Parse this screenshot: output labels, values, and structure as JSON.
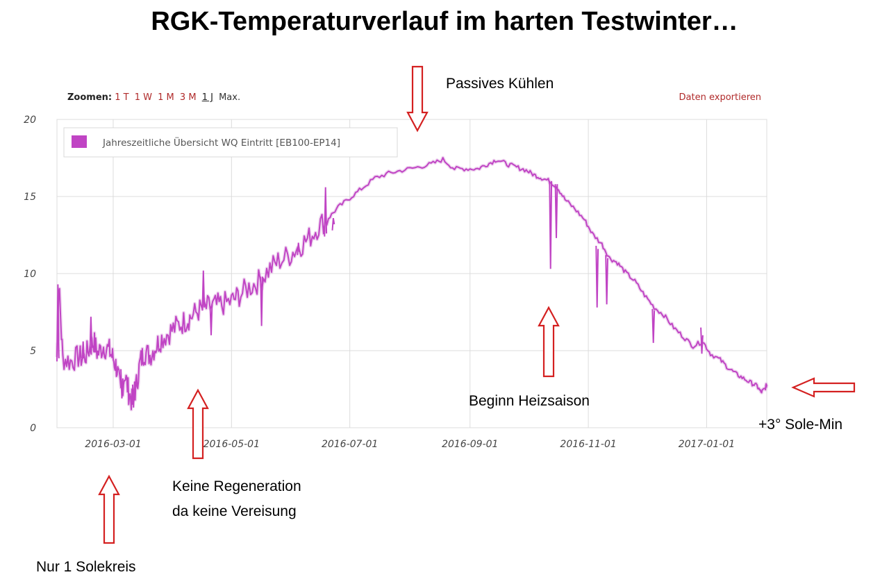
{
  "title": "RGK-Temperaturverlauf im harten Testwinter…",
  "toolbar": {
    "zoom_label": "Zoomen:",
    "zoom_options": [
      "1 T",
      "1 W",
      "1 M",
      "3 M",
      "1 J",
      "Max."
    ],
    "active_zoom": "1 J",
    "export_label": "Daten exportieren"
  },
  "annotations": {
    "passive_cooling": "Passives Kühlen",
    "heating_start": "Beginn Heizsaison",
    "sole_min": "+3° Sole-Min",
    "no_regeneration_line1": "Keine Regeneration",
    "no_regeneration_line2": "da keine Vereisung",
    "one_circuit": "Nur 1 Solekreis"
  },
  "colors": {
    "series": "#c044c4",
    "arrow": "#d42020",
    "grid": "#dcdcdc"
  },
  "chart_data": {
    "type": "line",
    "title": "",
    "xlabel": "",
    "ylabel": "",
    "ylim": [
      0,
      20
    ],
    "xlim": [
      "2016-02-01",
      "2017-02-01"
    ],
    "yticks": [
      "0",
      "5",
      "10",
      "15",
      "20"
    ],
    "xticks": [
      "2016-03-01",
      "2016-05-01",
      "2016-07-01",
      "2016-09-01",
      "2016-11-01",
      "2017-01-01"
    ],
    "grid": true,
    "legend_position": "top-left",
    "series": [
      {
        "name": "Jahreszeitliche Übersicht WQ Eintritt [EB100-EP14]",
        "color": "#c044c4",
        "x": [
          "2016-02-01",
          "2016-02-02",
          "2016-02-04",
          "2016-02-08",
          "2016-02-12",
          "2016-02-15",
          "2016-02-18",
          "2016-02-20",
          "2016-02-22",
          "2016-02-25",
          "2016-02-28",
          "2016-03-01",
          "2016-03-03",
          "2016-03-05",
          "2016-03-07",
          "2016-03-09",
          "2016-03-11",
          "2016-03-13",
          "2016-03-15",
          "2016-03-17",
          "2016-03-20",
          "2016-03-23",
          "2016-03-26",
          "2016-03-30",
          "2016-04-03",
          "2016-04-07",
          "2016-04-10",
          "2016-04-14",
          "2016-04-18",
          "2016-04-22",
          "2016-04-26",
          "2016-05-01",
          "2016-05-05",
          "2016-05-10",
          "2016-05-15",
          "2016-05-20",
          "2016-05-25",
          "2016-05-31",
          "2016-06-05",
          "2016-06-10",
          "2016-06-15",
          "2016-06-20",
          "2016-06-25",
          "2016-07-01",
          "2016-07-07",
          "2016-07-14",
          "2016-07-21",
          "2016-07-28",
          "2016-08-05",
          "2016-08-12",
          "2016-08-18",
          "2016-08-24",
          "2016-08-30",
          "2016-09-05",
          "2016-09-10",
          "2016-09-15",
          "2016-09-20",
          "2016-09-25",
          "2016-09-30",
          "2016-10-04",
          "2016-10-08",
          "2016-10-12",
          "2016-10-16",
          "2016-10-20",
          "2016-10-25",
          "2016-10-30",
          "2016-11-03",
          "2016-11-08",
          "2016-11-12",
          "2016-11-16",
          "2016-11-20",
          "2016-11-25",
          "2016-11-30",
          "2016-12-05",
          "2016-12-10",
          "2016-12-15",
          "2016-12-20",
          "2016-12-25",
          "2016-12-30",
          "2017-01-03",
          "2017-01-08",
          "2017-01-12",
          "2017-01-16",
          "2017-01-20",
          "2017-01-24",
          "2017-01-27",
          "2017-01-29",
          "2017-01-31",
          "2017-02-01"
        ],
        "values": [
          4.6,
          9.2,
          4.5,
          4.3,
          4.6,
          4.5,
          5.2,
          5.6,
          4.8,
          5.3,
          5.0,
          4.5,
          3.8,
          2.2,
          3.5,
          2.3,
          1.6,
          2.8,
          4.3,
          4.9,
          4.7,
          5.3,
          5.8,
          6.2,
          6.6,
          6.9,
          7.2,
          7.6,
          7.8,
          7.9,
          8.0,
          8.2,
          8.6,
          9.1,
          9.5,
          10.2,
          10.8,
          11.2,
          11.8,
          12.3,
          13.1,
          13.6,
          14.3,
          14.9,
          15.5,
          16.2,
          16.5,
          16.7,
          16.9,
          17.1,
          17.4,
          16.8,
          16.8,
          16.8,
          17.1,
          17.4,
          17.1,
          16.9,
          16.7,
          16.4,
          16.2,
          16.0,
          15.6,
          14.8,
          14.2,
          13.5,
          12.6,
          11.9,
          11.0,
          10.7,
          10.1,
          9.5,
          8.6,
          7.8,
          7.3,
          6.5,
          5.9,
          5.3,
          5.6,
          4.8,
          4.4,
          3.9,
          3.5,
          3.2,
          2.9,
          2.7,
          2.3,
          2.5,
          2.8
        ]
      }
    ],
    "spikes": [
      {
        "x": "2016-02-01",
        "values": [
          4.3,
          9.3,
          4.5
        ]
      },
      {
        "x": "2016-02-14",
        "values": [
          4.5,
          5.6,
          4.5
        ]
      },
      {
        "x": "2016-02-18",
        "values": [
          5.0,
          7.2,
          5.2
        ]
      },
      {
        "x": "2016-03-05",
        "values": [
          3.8,
          1.9,
          3.2
        ]
      },
      {
        "x": "2016-03-11",
        "values": [
          2.8,
          1.3,
          3.0
        ]
      },
      {
        "x": "2016-04-16",
        "values": [
          7.6,
          10.2,
          7.8
        ]
      },
      {
        "x": "2016-04-20",
        "values": [
          7.8,
          6.0,
          8.0
        ]
      },
      {
        "x": "2016-05-16",
        "values": [
          9.8,
          6.6,
          9.8
        ]
      },
      {
        "x": "2016-06-04",
        "values": [
          11.2,
          12.0,
          11.4
        ]
      },
      {
        "x": "2016-06-18",
        "values": [
          12.4,
          15.6,
          12.6
        ]
      },
      {
        "x": "2016-06-22",
        "values": [
          12.8,
          13.6,
          13.2
        ]
      },
      {
        "x": "2016-10-12",
        "values": [
          16.0,
          10.3,
          16.0
        ]
      },
      {
        "x": "2016-10-15",
        "values": [
          15.8,
          12.3,
          15.8
        ]
      },
      {
        "x": "2016-11-05",
        "values": [
          11.8,
          7.8,
          11.6
        ]
      },
      {
        "x": "2016-11-10",
        "values": [
          11.2,
          8.0,
          11.0
        ]
      },
      {
        "x": "2016-12-04",
        "values": [
          7.7,
          5.5,
          7.6
        ]
      },
      {
        "x": "2016-12-29",
        "values": [
          6.5,
          4.8,
          6.0
        ]
      }
    ]
  }
}
